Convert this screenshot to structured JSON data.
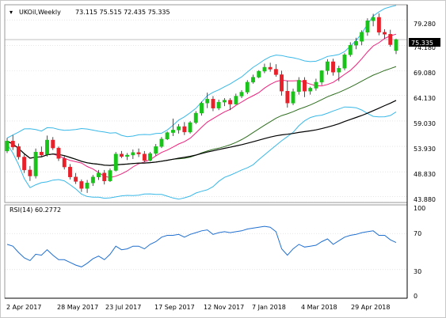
{
  "header": {
    "symbol": "UKOil,Weekly",
    "ohlc": "73.115 75.515 72.435 75.335"
  },
  "price_axis": {
    "ticks": [
      "79.280",
      "74.180",
      "69.080",
      "64.130",
      "59.030",
      "53.930",
      "48.830",
      "43.880"
    ],
    "current_price_label": "75.335"
  },
  "rsi": {
    "label": "RSI(14) 60.2772",
    "ticks": [
      "100",
      "70",
      "30",
      "0"
    ]
  },
  "time_axis": {
    "ticks": [
      "2 Apr 2017",
      "28 May 2017",
      "23 Jul 2017",
      "17 Sep 2017",
      "12 Nov 2017",
      "7 Jan 2018",
      "4 Mar 2018",
      "29 Apr 2018"
    ]
  },
  "colors": {
    "bull": "#19c319",
    "bear": "#e8202a",
    "bollinger": "#38b8e8",
    "sma_fast": "#f0207c",
    "sma_green": "#2f6e1f",
    "sma_black": "#000000",
    "rsi_line": "#1f6fd0",
    "price_line": "#b8b8b8",
    "grid": "#d6d6d6"
  },
  "chart_data": [
    {
      "type": "candlestick",
      "title": "UKOil,Weekly",
      "ylim": [
        43,
        82
      ],
      "x": [
        "2 Apr 2017",
        "28 May 2017",
        "23 Jul 2017",
        "17 Sep 2017",
        "12 Nov 2017",
        "7 Jan 2018",
        "4 Mar 2018",
        "29 Apr 2018"
      ],
      "ohlc": [
        [
          53.0,
          55.6,
          52.6,
          55.0
        ],
        [
          55.0,
          56.2,
          53.2,
          53.8
        ],
        [
          53.9,
          54.5,
          51.3,
          51.8
        ],
        [
          51.8,
          52.3,
          48.6,
          49.2
        ],
        [
          49.2,
          50.0,
          47.0,
          48.0
        ],
        [
          48.0,
          53.5,
          47.5,
          52.8
        ],
        [
          52.8,
          53.9,
          51.8,
          52.2
        ],
        [
          52.3,
          56.1,
          51.9,
          55.2
        ],
        [
          55.2,
          55.8,
          53.2,
          53.6
        ],
        [
          53.6,
          53.9,
          51.0,
          51.5
        ],
        [
          51.5,
          52.2,
          49.3,
          49.8
        ],
        [
          49.8,
          50.4,
          47.3,
          47.8
        ],
        [
          47.8,
          48.6,
          46.4,
          46.9
        ],
        [
          46.9,
          47.3,
          44.8,
          45.5
        ],
        [
          45.5,
          47.2,
          44.6,
          46.6
        ],
        [
          46.6,
          48.2,
          46.0,
          47.8
        ],
        [
          47.8,
          49.2,
          47.2,
          48.6
        ],
        [
          48.6,
          49.2,
          46.3,
          47.0
        ],
        [
          47.0,
          49.5,
          46.8,
          49.1
        ],
        [
          49.1,
          52.8,
          48.9,
          52.4
        ],
        [
          52.4,
          53.0,
          51.6,
          51.9
        ],
        [
          51.9,
          52.6,
          51.2,
          52.2
        ],
        [
          52.2,
          53.3,
          51.4,
          52.7
        ],
        [
          52.7,
          53.5,
          51.8,
          52.4
        ],
        [
          52.4,
          53.0,
          50.8,
          51.1
        ],
        [
          51.1,
          52.8,
          50.9,
          52.5
        ],
        [
          52.5,
          54.4,
          52.1,
          53.9
        ],
        [
          53.9,
          55.8,
          53.6,
          55.4
        ],
        [
          55.4,
          56.9,
          55.2,
          56.7
        ],
        [
          56.7,
          59.5,
          56.0,
          57.2
        ],
        [
          57.2,
          58.4,
          56.5,
          57.9
        ],
        [
          57.9,
          58.8,
          56.2,
          56.8
        ],
        [
          56.8,
          59.0,
          56.5,
          58.7
        ],
        [
          58.7,
          61.0,
          58.4,
          60.6
        ],
        [
          60.6,
          62.9,
          60.1,
          62.6
        ],
        [
          62.6,
          64.7,
          61.6,
          63.4
        ],
        [
          63.4,
          64.0,
          61.0,
          61.6
        ],
        [
          61.6,
          63.3,
          61.2,
          62.8
        ],
        [
          62.8,
          63.6,
          62.0,
          63.2
        ],
        [
          63.2,
          63.6,
          61.2,
          62.4
        ],
        [
          62.4,
          64.5,
          62.3,
          64.0
        ],
        [
          64.0,
          65.2,
          63.6,
          64.8
        ],
        [
          64.8,
          67.2,
          64.4,
          66.8
        ],
        [
          66.8,
          68.3,
          66.5,
          67.8
        ],
        [
          67.8,
          69.2,
          67.6,
          69.0
        ],
        [
          69.0,
          70.5,
          68.6,
          69.8
        ],
        [
          69.8,
          70.7,
          68.9,
          69.4
        ],
        [
          69.4,
          70.4,
          67.9,
          68.3
        ],
        [
          68.3,
          69.1,
          64.1,
          65.0
        ],
        [
          65.0,
          67.1,
          61.7,
          62.6
        ],
        [
          62.6,
          65.5,
          62.2,
          64.9
        ],
        [
          64.9,
          67.8,
          64.3,
          67.2
        ],
        [
          67.2,
          67.8,
          63.8,
          65.0
        ],
        [
          65.0,
          65.9,
          64.3,
          65.6
        ],
        [
          65.6,
          67.5,
          65.1,
          66.8
        ],
        [
          66.8,
          69.2,
          66.2,
          69.1
        ],
        [
          69.1,
          71.4,
          68.3,
          70.9
        ],
        [
          70.9,
          71.5,
          68.1,
          68.8
        ],
        [
          68.8,
          70.1,
          67.0,
          69.6
        ],
        [
          69.6,
          72.6,
          69.2,
          72.3
        ],
        [
          72.3,
          74.8,
          71.9,
          74.2
        ],
        [
          74.2,
          75.7,
          73.4,
          75.0
        ],
        [
          75.0,
          77.2,
          74.2,
          76.8
        ],
        [
          76.8,
          79.6,
          76.1,
          79.1
        ],
        [
          79.1,
          80.5,
          78.0,
          79.8
        ],
        [
          79.8,
          80.6,
          76.2,
          76.8
        ],
        [
          76.8,
          77.4,
          75.5,
          76.4
        ],
        [
          76.4,
          77.3,
          73.9,
          74.3
        ],
        [
          73.115,
          75.515,
          72.435,
          75.335
        ]
      ]
    },
    {
      "type": "line",
      "title": "RSI(14) 60.2772",
      "ylim": [
        0,
        100
      ],
      "values": [
        58,
        56,
        49,
        43,
        40,
        47,
        46,
        52,
        46,
        41,
        41,
        38,
        35,
        33,
        37,
        42,
        45,
        41,
        47,
        56,
        52,
        53,
        56,
        56,
        53,
        58,
        61,
        66,
        68,
        68,
        69,
        66,
        69,
        71,
        73,
        74,
        69,
        71,
        72,
        71,
        72,
        73,
        75,
        76,
        77,
        78,
        77,
        72,
        53,
        46,
        53,
        58,
        55,
        56,
        57,
        61,
        64,
        58,
        62,
        66,
        68,
        69,
        71,
        72,
        73,
        68,
        68,
        63,
        60
      ]
    }
  ]
}
